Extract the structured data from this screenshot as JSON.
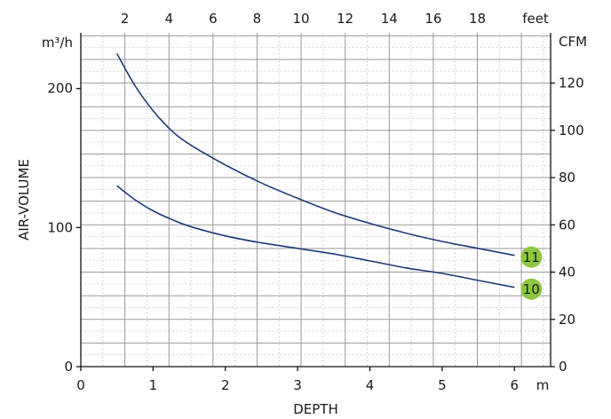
{
  "chart_data": {
    "type": "line",
    "x_label": "DEPTH",
    "x_unit": "m",
    "x_ticks": [
      "0",
      "1",
      "2",
      "3",
      "4",
      "5",
      "6"
    ],
    "x_range_m": [
      0,
      6.5
    ],
    "top_axis": {
      "unit": "feet",
      "ticks": [
        "2",
        "4",
        "6",
        "8",
        "10",
        "12",
        "14",
        "16",
        "18"
      ]
    },
    "y_label": "AIR-VOLUME",
    "y_unit": "m³/h",
    "y_ticks": [
      "0",
      "100",
      "200"
    ],
    "y_range_m3h": [
      0,
      240
    ],
    "right_axis": {
      "unit": "CFM",
      "ticks": [
        "0",
        "20",
        "40",
        "60",
        "80",
        "100",
        "120"
      ]
    },
    "grid": true,
    "line_color": "#1f3a7a",
    "marker_color": "#8dc63f",
    "series": [
      {
        "name": "11",
        "x": [
          0.5,
          0.75,
          1.0,
          1.25,
          1.5,
          2.0,
          2.5,
          3.0,
          3.5,
          4.0,
          4.5,
          5.0,
          5.5,
          6.0
        ],
        "y": [
          225,
          202,
          184,
          170,
          160,
          145,
          132,
          121,
          111,
          103,
          96,
          90,
          85,
          80
        ]
      },
      {
        "name": "10",
        "x": [
          0.5,
          0.75,
          1.0,
          1.25,
          1.5,
          2.0,
          2.5,
          3.0,
          3.5,
          4.0,
          4.5,
          5.0,
          5.5,
          6.0
        ],
        "y": [
          130,
          120,
          112,
          106,
          101,
          94,
          89,
          85,
          81,
          76,
          71,
          67,
          62,
          57
        ]
      }
    ]
  }
}
